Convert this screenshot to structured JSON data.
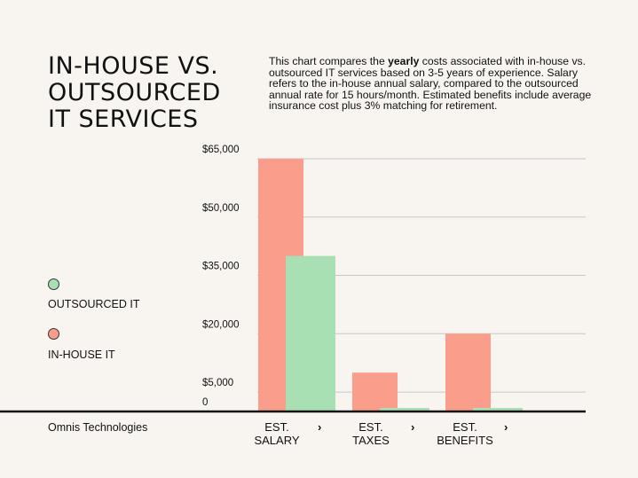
{
  "title_lines": [
    "IN-HOUSE VS.",
    "OUTSOURCED",
    "IT SERVICES"
  ],
  "description": {
    "part1": "This chart compares the ",
    "bold": "yearly",
    "part2": "  costs associated with in-house vs. outsourced IT services based on 3-5 years of experience. Salary refers to the in-house annual salary, compared to the outsourced annual rate for 15 hours/month. Estimated benefits include average insurance cost plus 3% matching for retirement."
  },
  "legend": [
    {
      "label": "OUTSOURCED IT",
      "color": "#a8e0b4"
    },
    {
      "label": "IN-HOUSE IT",
      "color": "#fa9d8a"
    }
  ],
  "footer": "Omnis Technologies",
  "chevron": "›",
  "colors": {
    "inhouse": "#fa9d8a",
    "outsourced": "#a8e0b4",
    "grid": "#c8c8c8",
    "axis": "#111111"
  },
  "chart_data": {
    "type": "bar",
    "categories": [
      [
        "EST.",
        "SALARY"
      ],
      [
        "EST.",
        "TAXES"
      ],
      [
        "EST.",
        "BENEFITS"
      ]
    ],
    "series": [
      {
        "name": "IN-HOUSE IT",
        "values": [
          65000,
          10000,
          20000
        ]
      },
      {
        "name": "OUTSOURCED IT",
        "values": [
          40000,
          900,
          900
        ]
      }
    ],
    "yticks": [
      0,
      5000,
      20000,
      35000,
      50000,
      65000
    ],
    "ytick_labels": [
      "0",
      "$5,000",
      "$20,000",
      "$35,000",
      "$50,000",
      "$65,000"
    ],
    "ylim": [
      0,
      65000
    ],
    "grid": true
  }
}
